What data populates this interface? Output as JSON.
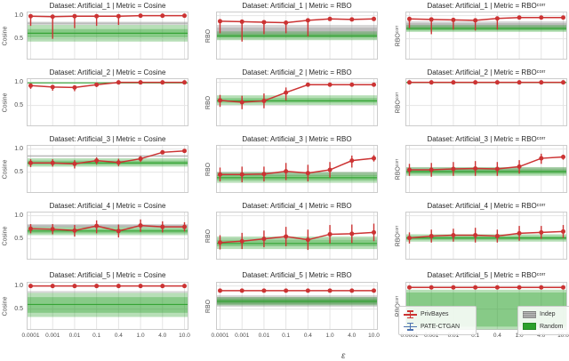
{
  "figure": {
    "xlabel": "ε",
    "x_tick_labels": [
      "0.0001",
      "0.001",
      "0.01",
      "0.1",
      "0.4",
      "1.0",
      "4.0",
      "10.0"
    ],
    "y_ticks": [
      {
        "v": 1.0,
        "label": "1.0"
      },
      {
        "v": 0.5,
        "label": "0.5"
      }
    ],
    "ylim": [
      0.05,
      1.09
    ],
    "colors": {
      "privbayes": "#cc3333",
      "pate_ctgan": "#4c72b0",
      "indep": "#8a8a8a",
      "random": "#2ca02c",
      "grid": "#e4e4e4",
      "axis_border": "#cccccc",
      "text": "#4d4d4d"
    },
    "legend": {
      "series": [
        {
          "label": "PrivBayes",
          "color": "#cc3333"
        },
        {
          "label": "PATE-CTGAN",
          "color": "#4c72b0"
        }
      ],
      "bands": [
        {
          "label": "Indep",
          "color": "#8a8a8a"
        },
        {
          "label": "Random",
          "color": "#2ca02c"
        }
      ]
    }
  },
  "chart_data": [
    {
      "type": "line",
      "dataset": "Artificial_1",
      "metric": "Cosine",
      "title": "Dataset: Artificial_1 | Metric = Cosine",
      "ylabel": "Cosine",
      "series": [
        {
          "name": "PrivBayes",
          "y": [
            0.99,
            0.98,
            0.99,
            0.99,
            0.99,
            1.0,
            1.0,
            1.0
          ],
          "err_lo": [
            0.78,
            0.5,
            0.73,
            0.78,
            0.8,
            0.99,
            0.99,
            0.99
          ],
          "err_hi": [
            1.0,
            1.0,
            1.0,
            1.0,
            1.0,
            1.0,
            1.0,
            1.0
          ]
        }
      ],
      "bands": [
        {
          "name": "Indep",
          "outer": [
            0.8,
            0.87
          ],
          "inner": [
            0.82,
            0.85
          ],
          "center": null
        },
        {
          "name": "Random",
          "outer": [
            0.44,
            0.8
          ],
          "inner": [
            0.53,
            0.71
          ],
          "center": 0.62
        }
      ]
    },
    {
      "type": "line",
      "dataset": "Artificial_1",
      "metric": "RBO",
      "title": "Dataset: Artificial_1 | Metric = RBO",
      "ylabel": "RBO",
      "series": [
        {
          "name": "PrivBayes",
          "y": [
            0.88,
            0.87,
            0.86,
            0.85,
            0.9,
            0.93,
            0.92,
            0.93
          ],
          "err_lo": [
            0.62,
            0.44,
            0.6,
            0.62,
            0.55,
            0.92,
            0.91,
            0.92
          ],
          "err_hi": [
            0.91,
            0.9,
            0.89,
            0.88,
            0.93,
            0.94,
            0.93,
            0.94
          ]
        }
      ],
      "bands": [
        {
          "name": "Indep",
          "outer": [
            0.54,
            0.8
          ],
          "inner": [
            0.6,
            0.74
          ],
          "center": null
        },
        {
          "name": "Random",
          "outer": [
            0.47,
            0.66
          ],
          "inner": [
            0.52,
            0.61
          ],
          "center": 0.56
        }
      ]
    },
    {
      "type": "line",
      "dataset": "Artificial_1",
      "metric": "RBOᶜᵒʳʳ",
      "title": "Dataset: Artificial_1 | Metric = RBOᶜᵒʳʳ",
      "ylabel": "RBOᶜᵒʳʳ",
      "series": [
        {
          "name": "PrivBayes",
          "y": [
            0.93,
            0.92,
            0.91,
            0.9,
            0.94,
            0.96,
            0.96,
            0.96
          ],
          "err_lo": [
            0.73,
            0.6,
            0.7,
            0.68,
            0.7,
            0.95,
            0.95,
            0.95
          ],
          "err_hi": [
            0.95,
            0.94,
            0.93,
            0.92,
            0.96,
            0.97,
            0.97,
            0.97
          ]
        }
      ],
      "bands": [
        {
          "name": "Indep",
          "outer": [
            0.7,
            0.88
          ],
          "inner": [
            0.74,
            0.84
          ],
          "center": null
        },
        {
          "name": "Random",
          "outer": [
            0.65,
            0.8
          ],
          "inner": [
            0.68,
            0.76
          ],
          "center": 0.72
        }
      ]
    },
    {
      "type": "line",
      "dataset": "Artificial_2",
      "metric": "Cosine",
      "title": "Dataset: Artificial_2 | Metric = Cosine",
      "ylabel": "Cosine",
      "series": [
        {
          "name": "PrivBayes",
          "y": [
            0.93,
            0.9,
            0.89,
            0.95,
            1.0,
            1.0,
            1.0,
            1.0
          ],
          "err_lo": [
            0.86,
            0.82,
            0.81,
            0.9,
            1.0,
            1.0,
            1.0,
            1.0
          ],
          "err_hi": [
            0.97,
            0.94,
            0.93,
            0.98,
            1.0,
            1.0,
            1.0,
            1.0
          ]
        }
      ],
      "bands": [
        {
          "name": "Random",
          "outer": [
            0.98,
            1.0
          ],
          "inner": null,
          "center": 0.99
        }
      ]
    },
    {
      "type": "line",
      "dataset": "Artificial_2",
      "metric": "RBO",
      "title": "Dataset: Artificial_2 | Metric = RBO",
      "ylabel": "RBO",
      "series": [
        {
          "name": "PrivBayes",
          "y": [
            0.61,
            0.57,
            0.6,
            0.78,
            0.95,
            0.95,
            0.95,
            0.95
          ],
          "err_lo": [
            0.47,
            0.42,
            0.44,
            0.61,
            0.94,
            0.94,
            0.94,
            0.94
          ],
          "err_hi": [
            0.73,
            0.71,
            0.76,
            0.89,
            0.96,
            0.96,
            0.96,
            0.96
          ]
        }
      ],
      "bands": [
        {
          "name": "Random",
          "outer": [
            0.51,
            0.72
          ],
          "inner": [
            0.56,
            0.66
          ],
          "center": 0.6
        }
      ]
    },
    {
      "type": "line",
      "dataset": "Artificial_2",
      "metric": "RBOᶜᵒʳʳ",
      "title": "Dataset: Artificial_2 | Metric = RBOᶜᵒʳʳ",
      "ylabel": "RBOᶜᵒʳʳ",
      "series": [
        {
          "name": "PrivBayes",
          "y": [
            1.0,
            1.0,
            1.0,
            1.0,
            1.0,
            1.0,
            1.0,
            1.0
          ],
          "err_lo": [
            1.0,
            1.0,
            1.0,
            1.0,
            1.0,
            1.0,
            1.0,
            1.0
          ],
          "err_hi": [
            1.0,
            1.0,
            1.0,
            1.0,
            1.0,
            1.0,
            1.0,
            1.0
          ]
        }
      ],
      "bands": [
        {
          "name": "Random",
          "outer": [
            0.99,
            1.0
          ],
          "inner": null,
          "center": 1.0
        }
      ]
    },
    {
      "type": "line",
      "dataset": "Artificial_3",
      "metric": "Cosine",
      "title": "Dataset: Artificial_3 | Metric = Cosine",
      "ylabel": "Cosine",
      "series": [
        {
          "name": "PrivBayes",
          "y": [
            0.7,
            0.7,
            0.68,
            0.75,
            0.71,
            0.79,
            0.93,
            0.96
          ],
          "err_lo": [
            0.61,
            0.62,
            0.58,
            0.67,
            0.63,
            0.72,
            0.89,
            0.93
          ],
          "err_hi": [
            0.78,
            0.78,
            0.76,
            0.82,
            0.79,
            0.85,
            0.96,
            0.98
          ]
        }
      ],
      "bands": [
        {
          "name": "Indep",
          "outer": [
            0.83,
            0.87
          ],
          "inner": [
            0.84,
            0.86
          ],
          "center": null
        },
        {
          "name": "Random",
          "outer": [
            0.62,
            0.8
          ],
          "inner": [
            0.66,
            0.75
          ],
          "center": 0.7
        }
      ]
    },
    {
      "type": "line",
      "dataset": "Artificial_3",
      "metric": "RBO",
      "title": "Dataset: Artificial_3 | Metric = RBO",
      "ylabel": "RBO",
      "series": [
        {
          "name": "PrivBayes",
          "y": [
            0.45,
            0.45,
            0.46,
            0.52,
            0.48,
            0.55,
            0.75,
            0.8
          ],
          "err_lo": [
            0.3,
            0.28,
            0.3,
            0.33,
            0.3,
            0.38,
            0.6,
            0.73
          ],
          "err_hi": [
            0.6,
            0.62,
            0.62,
            0.7,
            0.66,
            0.72,
            0.86,
            0.87
          ]
        }
      ],
      "bands": [
        {
          "name": "Indep",
          "outer": [
            0.42,
            0.5
          ],
          "inner": null,
          "center": null
        },
        {
          "name": "Random",
          "outer": [
            0.27,
            0.5
          ],
          "inner": [
            0.32,
            0.44
          ],
          "center": 0.38
        }
      ]
    },
    {
      "type": "line",
      "dataset": "Artificial_3",
      "metric": "RBOᶜᵒʳʳ",
      "title": "Dataset: Artificial_3 | Metric = RBOᶜᵒʳʳ",
      "ylabel": "RBOᶜᵒʳʳ",
      "series": [
        {
          "name": "PrivBayes",
          "y": [
            0.55,
            0.55,
            0.57,
            0.58,
            0.57,
            0.62,
            0.8,
            0.83
          ],
          "err_lo": [
            0.42,
            0.4,
            0.42,
            0.42,
            0.42,
            0.47,
            0.68,
            0.77
          ],
          "err_hi": [
            0.68,
            0.7,
            0.72,
            0.74,
            0.72,
            0.76,
            0.9,
            0.88
          ]
        }
      ],
      "bands": [
        {
          "name": "Indep",
          "outer": [
            0.5,
            0.6
          ],
          "inner": null,
          "center": null
        },
        {
          "name": "Random",
          "outer": [
            0.42,
            0.61
          ],
          "inner": [
            0.46,
            0.56
          ],
          "center": 0.51
        }
      ]
    },
    {
      "type": "line",
      "dataset": "Artificial_4",
      "metric": "Cosine",
      "title": "Dataset: Artificial_4 | Metric = Cosine",
      "ylabel": "Cosine",
      "series": [
        {
          "name": "PrivBayes",
          "y": [
            0.72,
            0.71,
            0.68,
            0.78,
            0.67,
            0.79,
            0.76,
            0.76
          ],
          "err_lo": [
            0.62,
            0.6,
            0.55,
            0.62,
            0.53,
            0.65,
            0.64,
            0.66
          ],
          "err_hi": [
            0.82,
            0.82,
            0.8,
            0.9,
            0.81,
            0.92,
            0.88,
            0.86
          ]
        }
      ],
      "bands": [
        {
          "name": "Indep",
          "outer": [
            0.74,
            0.82
          ],
          "inner": [
            0.76,
            0.8
          ],
          "center": null
        },
        {
          "name": "Random",
          "outer": [
            0.58,
            0.76
          ],
          "inner": [
            0.62,
            0.72
          ],
          "center": 0.67
        }
      ]
    },
    {
      "type": "line",
      "dataset": "Artificial_4",
      "metric": "RBO",
      "title": "Dataset: Artificial_4 | Metric = RBO",
      "ylabel": "RBO",
      "series": [
        {
          "name": "PrivBayes",
          "y": [
            0.42,
            0.45,
            0.5,
            0.55,
            0.48,
            0.6,
            0.61,
            0.64
          ],
          "err_lo": [
            0.27,
            0.28,
            0.32,
            0.34,
            0.26,
            0.4,
            0.41,
            0.45
          ],
          "err_hi": [
            0.58,
            0.63,
            0.68,
            0.76,
            0.7,
            0.8,
            0.81,
            0.83
          ]
        }
      ],
      "bands": [
        {
          "name": "Random",
          "outer": [
            0.28,
            0.55
          ],
          "inner": [
            0.34,
            0.48
          ],
          "center": 0.4
        }
      ]
    },
    {
      "type": "line",
      "dataset": "Artificial_4",
      "metric": "RBOᶜᵒʳʳ",
      "title": "Dataset: Artificial_4 | Metric = RBOᶜᵒʳʳ",
      "ylabel": "RBOᶜᵒʳʳ",
      "series": [
        {
          "name": "PrivBayes",
          "y": [
            0.52,
            0.56,
            0.58,
            0.58,
            0.56,
            0.62,
            0.64,
            0.66
          ],
          "err_lo": [
            0.4,
            0.42,
            0.44,
            0.42,
            0.42,
            0.46,
            0.5,
            0.52
          ],
          "err_hi": [
            0.64,
            0.7,
            0.72,
            0.74,
            0.7,
            0.78,
            0.78,
            0.8
          ]
        }
      ],
      "bands": [
        {
          "name": "Random",
          "outer": [
            0.44,
            0.6
          ],
          "inner": [
            0.48,
            0.56
          ],
          "center": 0.52
        }
      ]
    },
    {
      "type": "line",
      "dataset": "Artificial_5",
      "metric": "Cosine",
      "title": "Dataset: Artificial_5 | Metric = Cosine",
      "ylabel": "Cosine",
      "series": [
        {
          "name": "PrivBayes",
          "y": [
            1.0,
            1.0,
            1.0,
            1.0,
            1.0,
            1.0,
            1.0,
            1.0
          ],
          "err_lo": [
            1.0,
            1.0,
            1.0,
            1.0,
            1.0,
            1.0,
            1.0,
            1.0
          ],
          "err_hi": [
            1.0,
            1.0,
            1.0,
            1.0,
            1.0,
            1.0,
            1.0,
            1.0
          ]
        }
      ],
      "bands": [
        {
          "name": "Indep",
          "outer": [
            0.85,
            0.89
          ],
          "inner": null,
          "center": null
        },
        {
          "name": "Random",
          "outer": [
            0.33,
            0.85
          ],
          "inner": [
            0.42,
            0.76
          ],
          "center": 0.6
        }
      ]
    },
    {
      "type": "line",
      "dataset": "Artificial_5",
      "metric": "RBO",
      "title": "Dataset: Artificial_5 | Metric = RBO",
      "ylabel": "RBO",
      "series": [
        {
          "name": "PrivBayes",
          "y": [
            0.9,
            0.9,
            0.9,
            0.9,
            0.9,
            0.9,
            0.9,
            0.9
          ],
          "err_lo": [
            0.9,
            0.9,
            0.9,
            0.9,
            0.9,
            0.9,
            0.9,
            0.9
          ],
          "err_hi": [
            0.9,
            0.9,
            0.9,
            0.9,
            0.9,
            0.9,
            0.9,
            0.9
          ]
        }
      ],
      "bands": [
        {
          "name": "Indep",
          "outer": [
            0.55,
            0.8
          ],
          "inner": [
            0.6,
            0.76
          ],
          "center": null
        },
        {
          "name": "Random",
          "outer": [
            0.58,
            0.76
          ],
          "inner": [
            0.62,
            0.72
          ],
          "center": 0.67
        }
      ]
    },
    {
      "type": "line",
      "dataset": "Artificial_5",
      "metric": "RBOᶜᵒʳʳ",
      "title": "Dataset: Artificial_5 | Metric = RBOᶜᵒʳʳ",
      "ylabel": "RBOᶜᵒʳʳ",
      "series": [
        {
          "name": "PrivBayes",
          "y": [
            0.97,
            0.97,
            0.97,
            0.97,
            0.97,
            0.97,
            0.97,
            0.97
          ],
          "err_lo": [
            0.97,
            0.97,
            0.97,
            0.97,
            0.97,
            0.97,
            0.97,
            0.97
          ],
          "err_hi": [
            0.97,
            0.97,
            0.97,
            0.97,
            0.97,
            0.97,
            0.97,
            0.97
          ]
        }
      ],
      "bands": [
        {
          "name": "Random",
          "outer": [
            0.06,
            0.92
          ],
          "inner": [
            0.12,
            0.86
          ],
          "center": null
        }
      ]
    }
  ]
}
